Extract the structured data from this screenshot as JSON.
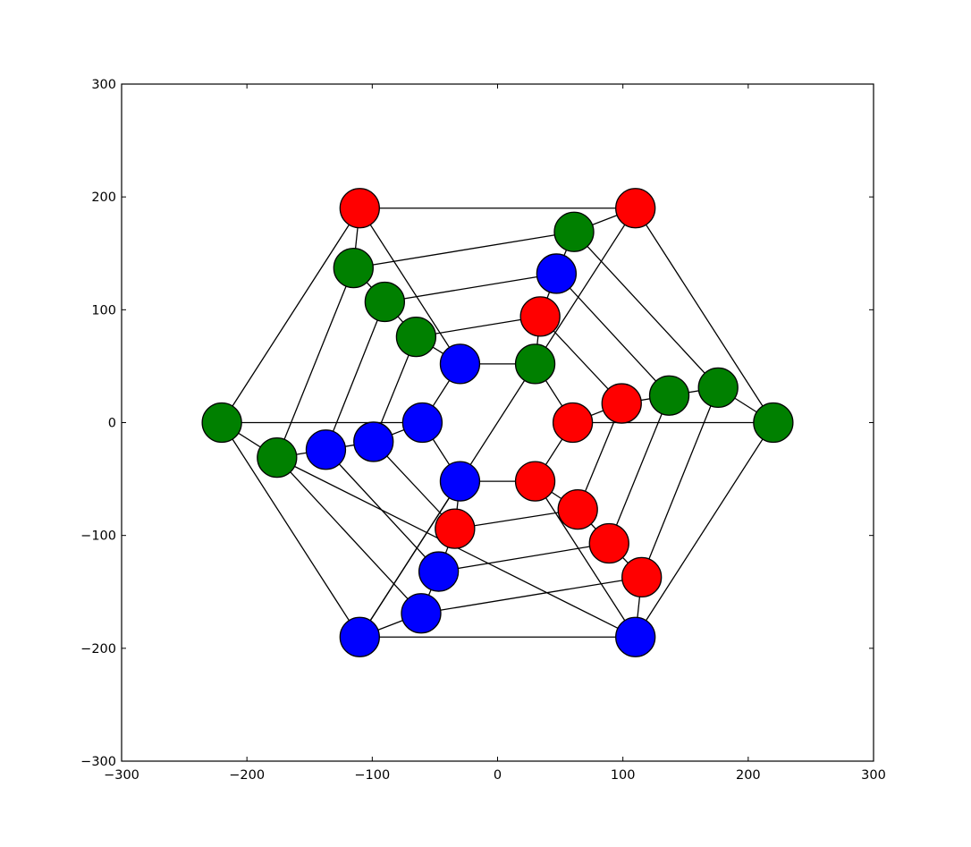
{
  "chart_data": {
    "type": "scatter",
    "subtype": "graph",
    "xlim": [
      -300,
      300
    ],
    "ylim": [
      -300,
      300
    ],
    "x_ticks": [
      -300,
      -200,
      -100,
      0,
      100,
      200,
      300
    ],
    "y_ticks": [
      -300,
      -200,
      -100,
      0,
      100,
      200,
      300
    ],
    "x_tick_labels": [
      "−300",
      "−200",
      "−100",
      "0",
      "100",
      "200",
      "300"
    ],
    "y_tick_labels": [
      "−300",
      "−200",
      "−100",
      "0",
      "100",
      "200",
      "300"
    ],
    "grid": false,
    "colors": {
      "red": "#ff0000",
      "green": "#008000",
      "blue": "#0000ff"
    },
    "nodes": [
      {
        "id": 0,
        "x": -110,
        "y": 190,
        "color": "red"
      },
      {
        "id": 1,
        "x": 110,
        "y": 190,
        "color": "red"
      },
      {
        "id": 2,
        "x": 220,
        "y": 0,
        "color": "green"
      },
      {
        "id": 3,
        "x": 110,
        "y": -190,
        "color": "blue"
      },
      {
        "id": 4,
        "x": -110,
        "y": -190,
        "color": "blue"
      },
      {
        "id": 5,
        "x": -220,
        "y": 0,
        "color": "green"
      },
      {
        "id": 6,
        "x": -115,
        "y": 137,
        "color": "green"
      },
      {
        "id": 7,
        "x": 61,
        "y": 169,
        "color": "green"
      },
      {
        "id": 8,
        "x": 176,
        "y": 31,
        "color": "green"
      },
      {
        "id": 9,
        "x": 115,
        "y": -137,
        "color": "red"
      },
      {
        "id": 10,
        "x": -61,
        "y": -169,
        "color": "blue"
      },
      {
        "id": 11,
        "x": -176,
        "y": -31,
        "color": "green"
      },
      {
        "id": 12,
        "x": -90,
        "y": 107,
        "color": "green"
      },
      {
        "id": 13,
        "x": 47,
        "y": 132,
        "color": "blue"
      },
      {
        "id": 14,
        "x": 137,
        "y": 24,
        "color": "green"
      },
      {
        "id": 15,
        "x": 89,
        "y": -107,
        "color": "red"
      },
      {
        "id": 16,
        "x": -47,
        "y": -132,
        "color": "blue"
      },
      {
        "id": 17,
        "x": -137,
        "y": -24,
        "color": "blue"
      },
      {
        "id": 18,
        "x": -65,
        "y": 76,
        "color": "green"
      },
      {
        "id": 19,
        "x": 34,
        "y": 94,
        "color": "red"
      },
      {
        "id": 20,
        "x": 99,
        "y": 17,
        "color": "red"
      },
      {
        "id": 21,
        "x": 64,
        "y": -77,
        "color": "red"
      },
      {
        "id": 22,
        "x": -34,
        "y": -94,
        "color": "red"
      },
      {
        "id": 23,
        "x": -99,
        "y": -17,
        "color": "blue"
      },
      {
        "id": 24,
        "x": -30,
        "y": 52,
        "color": "blue"
      },
      {
        "id": 25,
        "x": 30,
        "y": 52,
        "color": "green"
      },
      {
        "id": 26,
        "x": 60,
        "y": 0,
        "color": "red"
      },
      {
        "id": 27,
        "x": 30,
        "y": -52,
        "color": "red"
      },
      {
        "id": 28,
        "x": -30,
        "y": -52,
        "color": "blue"
      },
      {
        "id": 29,
        "x": -60,
        "y": 0,
        "color": "blue"
      }
    ],
    "edges": [
      [
        0,
        1
      ],
      [
        1,
        2
      ],
      [
        2,
        3
      ],
      [
        3,
        4
      ],
      [
        4,
        5
      ],
      [
        5,
        0
      ],
      [
        0,
        6
      ],
      [
        1,
        7
      ],
      [
        2,
        8
      ],
      [
        3,
        9
      ],
      [
        4,
        10
      ],
      [
        5,
        11
      ],
      [
        6,
        7
      ],
      [
        7,
        8
      ],
      [
        8,
        9
      ],
      [
        9,
        10
      ],
      [
        10,
        11
      ],
      [
        11,
        6
      ],
      [
        6,
        12
      ],
      [
        7,
        13
      ],
      [
        8,
        14
      ],
      [
        9,
        15
      ],
      [
        10,
        16
      ],
      [
        11,
        17
      ],
      [
        12,
        13
      ],
      [
        13,
        14
      ],
      [
        14,
        15
      ],
      [
        15,
        16
      ],
      [
        16,
        17
      ],
      [
        17,
        12
      ],
      [
        12,
        18
      ],
      [
        13,
        19
      ],
      [
        14,
        20
      ],
      [
        15,
        21
      ],
      [
        16,
        22
      ],
      [
        17,
        23
      ],
      [
        18,
        19
      ],
      [
        19,
        20
      ],
      [
        20,
        21
      ],
      [
        21,
        22
      ],
      [
        22,
        23
      ],
      [
        23,
        18
      ],
      [
        18,
        24
      ],
      [
        19,
        25
      ],
      [
        20,
        26
      ],
      [
        21,
        27
      ],
      [
        22,
        28
      ],
      [
        23,
        29
      ],
      [
        24,
        25
      ],
      [
        25,
        26
      ],
      [
        26,
        27
      ],
      [
        27,
        28
      ],
      [
        28,
        29
      ],
      [
        29,
        24
      ],
      [
        0,
        24
      ],
      [
        1,
        25
      ],
      [
        2,
        26
      ],
      [
        3,
        27
      ],
      [
        4,
        28
      ],
      [
        5,
        29
      ],
      [
        3,
        11
      ],
      [
        4,
        25
      ]
    ]
  }
}
